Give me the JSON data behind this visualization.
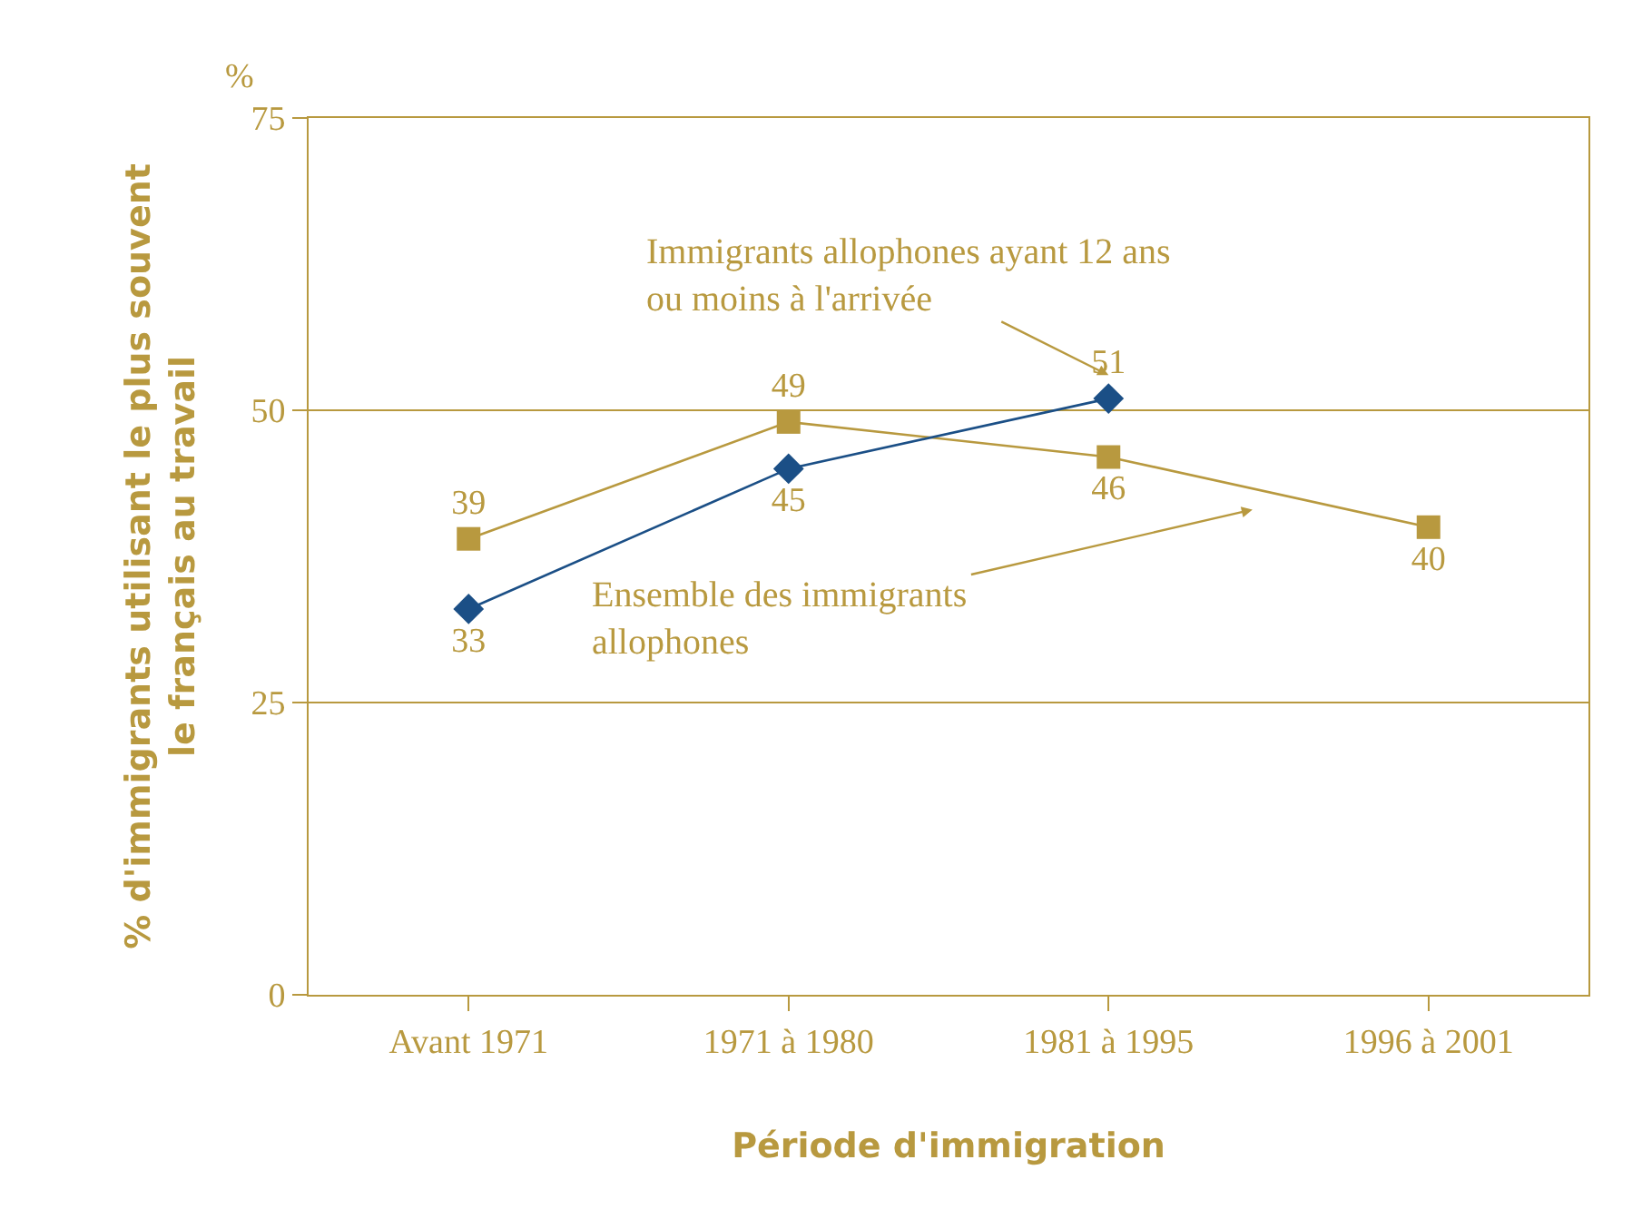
{
  "chart_data": {
    "type": "line",
    "xlabel": "Période d'immigration",
    "ylabel": "% d'immigrants utilisant le plus souvent\nle français au travail",
    "categories": [
      "Avant 1971",
      "1971 à 1980",
      "1981 à 1995",
      "1996 à 2001"
    ],
    "series": [
      {
        "name": "Ensemble des immigrants\nallophones",
        "color": "#b8993f",
        "values": [
          39,
          49,
          46,
          40
        ],
        "marker": "square"
      },
      {
        "name": "Immigrants allophones ayant 12 ans\nou moins à l'arrivée",
        "color": "#1b4f86",
        "values": [
          33,
          45,
          51,
          null
        ],
        "marker": "diamond"
      }
    ],
    "ylim": [
      0,
      75
    ],
    "yticks": [
      0,
      25,
      50,
      75
    ],
    "grid": "y",
    "legend": false,
    "data_labels": true,
    "annotations": [
      "%"
    ]
  }
}
